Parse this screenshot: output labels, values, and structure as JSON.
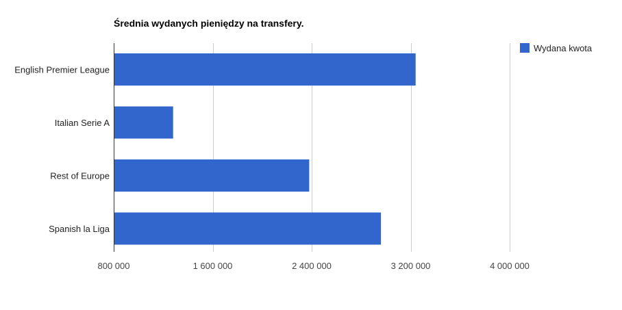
{
  "chart_data": {
    "type": "bar",
    "orientation": "horizontal",
    "title": "Średnia wydanych pieniędzy na transfery.",
    "xlabel": "",
    "ylabel": "",
    "categories": [
      "English Premier League",
      "Italian Serie A",
      "Rest of Europe",
      "Spanish la Liga"
    ],
    "series": [
      {
        "name": "Wydana kwota",
        "color": "#3366cc",
        "values": [
          3240000,
          1280000,
          2380000,
          2960000
        ]
      }
    ],
    "xlim": [
      800000,
      4000000
    ],
    "x_ticks": [
      800000,
      1600000,
      2400000,
      3200000,
      4000000
    ],
    "x_tick_labels": [
      "800 000",
      "1 600 000",
      "2 400 000",
      "3 200 000",
      "4 000 000"
    ],
    "grid": true,
    "legend_position": "top-right"
  }
}
